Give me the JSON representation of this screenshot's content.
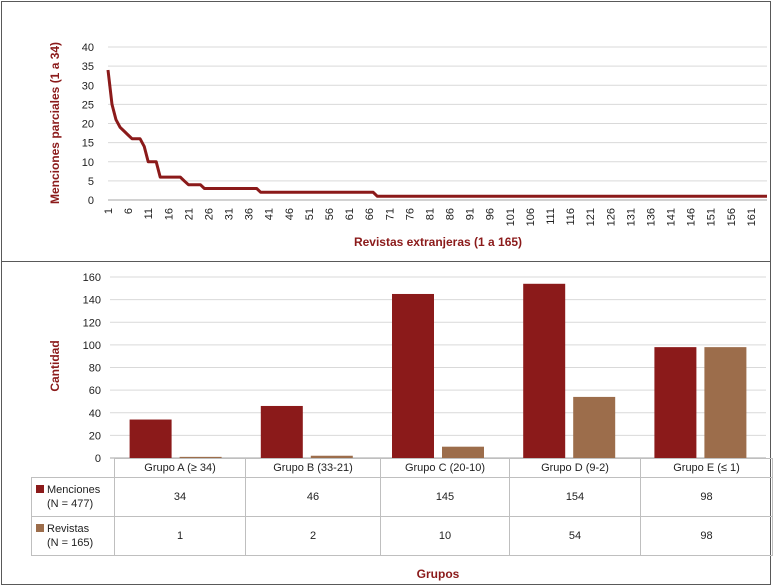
{
  "colors": {
    "menciones": "#8b1a1a",
    "revistas": "#9c6d4b",
    "grid": "#d9d9d9",
    "axis_title": "#8b1a1a"
  },
  "chart_data": [
    {
      "type": "line",
      "xlabel": "Revistas extranjeras (1 a 165)",
      "ylabel": "Menciones parciales (1 a 34)",
      "ylim": [
        0,
        40
      ],
      "yticks": [
        0,
        5,
        10,
        15,
        20,
        25,
        30,
        35,
        40
      ],
      "xlim": [
        1,
        165
      ],
      "xticks": [
        1,
        6,
        11,
        16,
        21,
        26,
        31,
        36,
        41,
        46,
        51,
        56,
        61,
        66,
        71,
        76,
        81,
        86,
        91,
        96,
        101,
        106,
        111,
        116,
        121,
        126,
        131,
        136,
        141,
        146,
        151,
        156,
        161
      ],
      "grid": true,
      "series": [
        {
          "points": [
            [
              1,
              34
            ],
            [
              2,
              25
            ],
            [
              3,
              21
            ],
            [
              4,
              19
            ],
            [
              5,
              18
            ],
            [
              6,
              17
            ],
            [
              7,
              16
            ],
            [
              8,
              16
            ],
            [
              9,
              16
            ],
            [
              10,
              14
            ],
            [
              11,
              10
            ],
            [
              12,
              10
            ],
            [
              13,
              10
            ],
            [
              14,
              6
            ],
            [
              15,
              6
            ],
            [
              16,
              6
            ],
            [
              17,
              6
            ],
            [
              18,
              6
            ],
            [
              19,
              6
            ],
            [
              20,
              5
            ],
            [
              21,
              4
            ],
            [
              22,
              4
            ],
            [
              23,
              4
            ],
            [
              24,
              4
            ],
            [
              25,
              3
            ],
            [
              26,
              3
            ],
            [
              38,
              3
            ],
            [
              39,
              2
            ],
            [
              67,
              2
            ],
            [
              68,
              1
            ],
            [
              165,
              1
            ]
          ]
        }
      ]
    },
    {
      "type": "bar",
      "xlabel": "Grupos",
      "ylabel": "Cantidad",
      "ylim": [
        0,
        160
      ],
      "yticks": [
        0,
        20,
        40,
        60,
        80,
        100,
        120,
        140,
        160
      ],
      "grid": true,
      "categories": [
        "Grupo A (≥ 34)",
        "Grupo B (33-21)",
        "Grupo C (20-10)",
        "Grupo D (9-2)",
        "Grupo E (≤ 1)"
      ],
      "series": [
        {
          "name_line1": "Menciones",
          "name_line2": "(N = 477)",
          "values": [
            34,
            46,
            145,
            154,
            98
          ]
        },
        {
          "name_line1": "Revistas",
          "name_line2": "(N = 165)",
          "values": [
            1,
            2,
            10,
            54,
            98
          ]
        }
      ],
      "table_values": {
        "menciones": [
          "34",
          "46",
          "145",
          "154",
          "98"
        ],
        "revistas": [
          "1",
          "2",
          "10",
          "54",
          "98"
        ]
      }
    }
  ]
}
